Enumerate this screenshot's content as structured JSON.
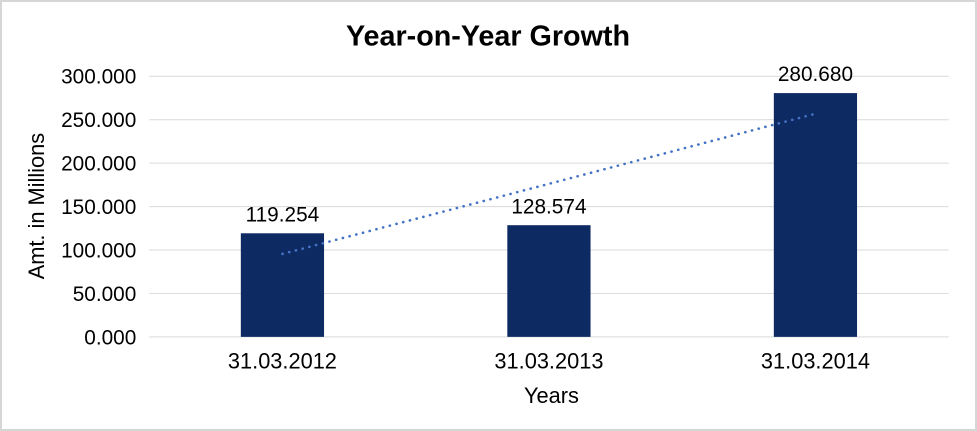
{
  "window": {
    "background": "#FFFFFF",
    "border_color": "#D6D6D6"
  },
  "chart_data": {
    "type": "bar",
    "title": "Year-on-Year Growth",
    "xlabel": "Years",
    "ylabel": "Amt. in Millions",
    "categories": [
      "31.03.2012",
      "31.03.2013",
      "31.03.2014"
    ],
    "values": [
      119.254,
      128.574,
      280.68
    ],
    "value_labels": [
      "119.254",
      "128.574",
      "280.680"
    ],
    "ylim": [
      0,
      300
    ],
    "yticks": [
      {
        "value": 0,
        "label": "0.000"
      },
      {
        "value": 50,
        "label": "50.000"
      },
      {
        "value": 100,
        "label": "100.000"
      },
      {
        "value": 150,
        "label": "150.000"
      },
      {
        "value": 200,
        "label": "200.000"
      },
      {
        "value": 250,
        "label": "250.000"
      },
      {
        "value": 300,
        "label": "300.000"
      }
    ],
    "grid": true,
    "legend": "none",
    "bar_color": "#0D2A63",
    "text_color": "#000000",
    "gridline_color": "#D9D9D9",
    "trendline": {
      "type": "linear",
      "style": "dotted",
      "color": "#4472C4",
      "values": [
        95.5,
        176.2,
        256.9
      ]
    }
  }
}
